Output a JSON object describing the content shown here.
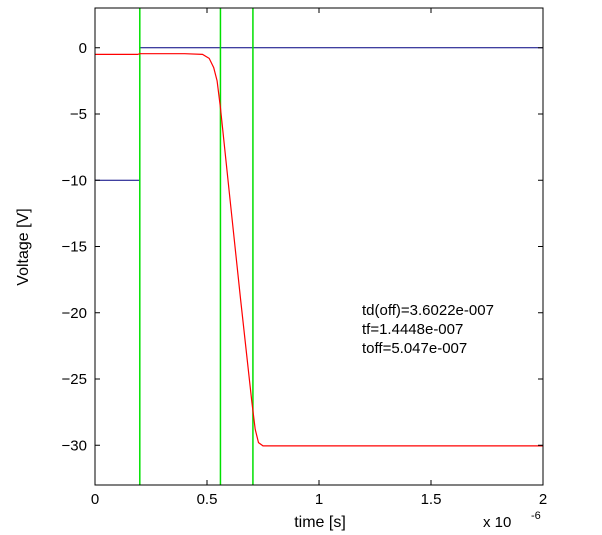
{
  "chart_data": {
    "type": "line",
    "xlabel": "time [s]",
    "ylabel": "Voltage [V]",
    "x_multiplier_label": "x 10",
    "x_multiplier_exp": "-6",
    "xlim": [
      0,
      2
    ],
    "ylim": [
      -33,
      3
    ],
    "x_ticks": [
      0,
      0.5,
      1,
      1.5,
      2
    ],
    "x_tick_labels": [
      "0",
      "0.5",
      "1",
      "1.5",
      "2"
    ],
    "y_ticks": [
      0,
      -5,
      -10,
      -15,
      -20,
      -25,
      -30
    ],
    "y_tick_labels": [
      "0",
      "−5",
      "−10",
      "−15",
      "−20",
      "−25",
      "−30"
    ],
    "grid": false,
    "series": [
      {
        "color": "#ff0000",
        "points": [
          [
            0,
            -0.5
          ],
          [
            0.19,
            -0.5
          ],
          [
            0.2,
            -0.45
          ],
          [
            0.4,
            -0.45
          ],
          [
            0.48,
            -0.5
          ],
          [
            0.51,
            -0.8
          ],
          [
            0.53,
            -1.5
          ],
          [
            0.545,
            -2.5
          ],
          [
            0.56,
            -4.5
          ],
          [
            0.6,
            -11
          ],
          [
            0.65,
            -19
          ],
          [
            0.7,
            -26.7
          ],
          [
            0.715,
            -28.8
          ],
          [
            0.73,
            -29.8
          ],
          [
            0.75,
            -30.05
          ],
          [
            2,
            -30.05
          ]
        ]
      }
    ],
    "reference_lines": {
      "color": "#000080",
      "lines": [
        {
          "y": 0,
          "x_start": 0.2,
          "x_end": 2
        },
        {
          "y": -10,
          "x_start": 0,
          "x_end": 0.2
        }
      ]
    },
    "vertical_markers": {
      "color": "#00e000",
      "x": [
        0.2,
        0.56,
        0.705
      ]
    },
    "annotations": [
      "td(off)=3.6022e-007",
      "tf=1.4448e-007",
      "toff=5.047e-007"
    ]
  }
}
